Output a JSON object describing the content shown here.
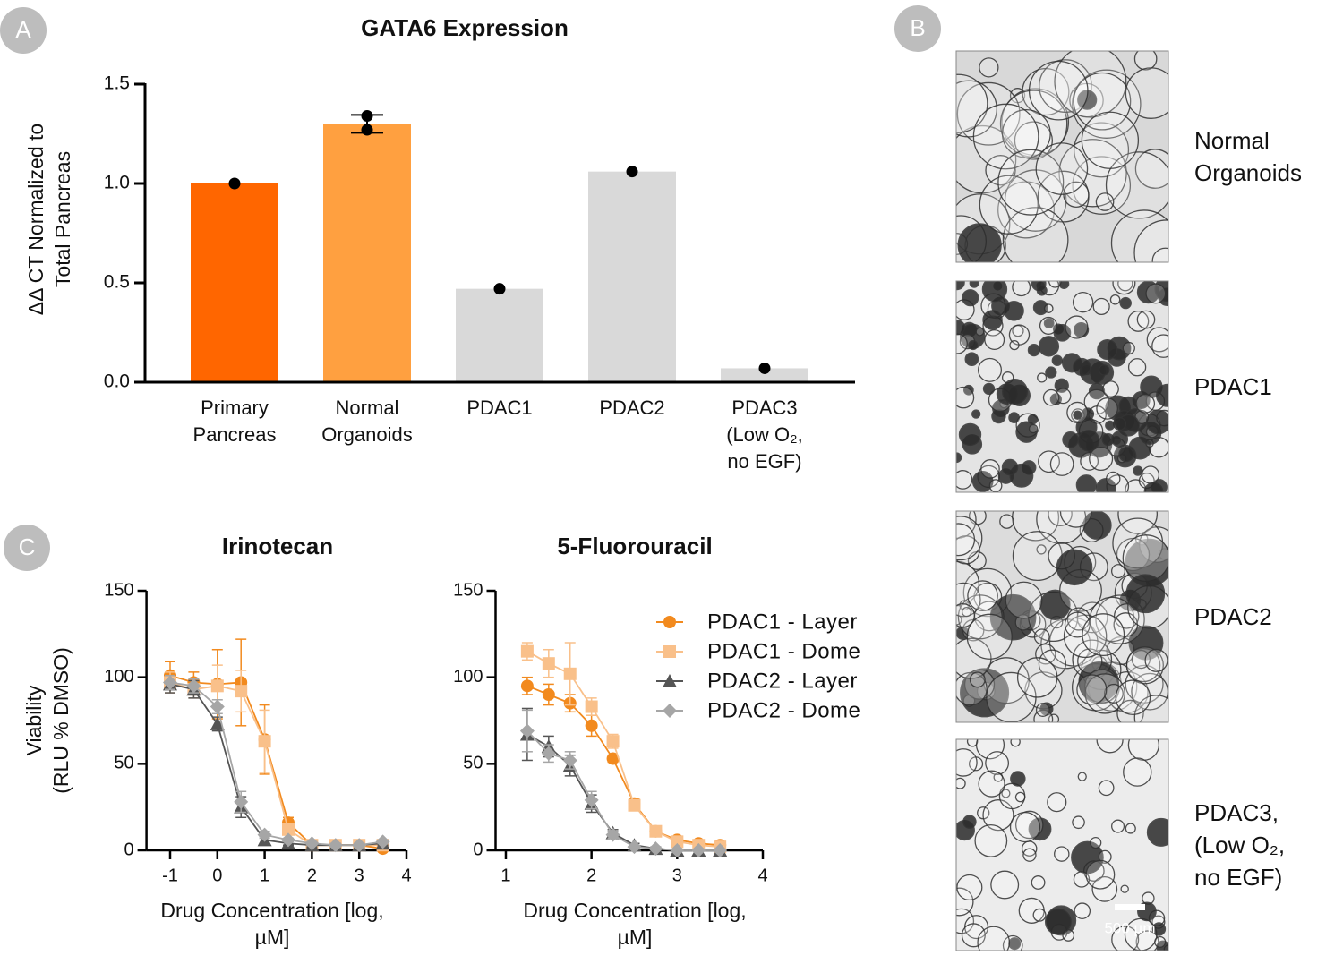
{
  "panel_labels": [
    "A",
    "B",
    "C"
  ],
  "chart_data": [
    {
      "type": "bar",
      "title": "GATA6 Expression",
      "ylabel": [
        "ΔΔ CT Normalized to",
        "Total Pancreas"
      ],
      "categories": [
        "Primary Pancreas",
        "Normal Organoids",
        "PDAC1",
        "PDAC2",
        "PDAC3 (Low O₂, no EGF)"
      ],
      "values": [
        1.0,
        1.3,
        0.47,
        1.06,
        0.07
      ],
      "errors": [
        null,
        0.045,
        null,
        null,
        null
      ],
      "points": [
        [
          1.0
        ],
        [
          1.34,
          1.27
        ],
        [
          0.47
        ],
        [
          1.06
        ],
        [
          0.07
        ]
      ],
      "colors": [
        "#ff6600",
        "#ffa040",
        "#d9d9d9",
        "#d9d9d9",
        "#d9d9d9"
      ],
      "ylim": [
        0,
        1.5
      ],
      "yticks": [
        {
          "value": 0,
          "label": "0.0"
        },
        0.5,
        {
          "value": 1,
          "label": "1.0"
        },
        1.5
      ]
    },
    {
      "type": "line",
      "title": "Irinotecan",
      "ylabel": [
        "Viability",
        "(RLU % DMSO)"
      ],
      "xlabel": "Drug Concentration [log, µM]",
      "x": [
        -1,
        -0.5,
        0,
        0.5,
        1,
        1.5,
        2,
        2.5,
        3,
        3.5
      ],
      "series": [
        {
          "color": "#f28a1e",
          "marker": "circle",
          "values": [
            101,
            97,
            96,
            97,
            64,
            16,
            3,
            3,
            3,
            1
          ],
          "errors": [
            8,
            6,
            20,
            25,
            20,
            3,
            1,
            1,
            1,
            1
          ]
        },
        {
          "color": "#f9c08a",
          "marker": "square",
          "values": [
            97,
            93,
            95,
            92,
            63,
            12,
            3,
            3,
            3,
            3
          ],
          "errors": [
            6,
            5,
            12,
            12,
            18,
            3,
            1,
            1,
            1,
            1
          ]
        },
        {
          "color": "#555555",
          "marker": "triangle",
          "values": [
            96,
            93,
            73,
            25,
            6,
            4,
            3,
            3,
            3,
            4
          ],
          "errors": [
            5,
            5,
            4,
            6,
            2,
            1,
            1,
            1,
            1,
            1
          ]
        },
        {
          "color": "#a6a6a6",
          "marker": "diamond",
          "values": [
            97,
            95,
            83,
            28,
            9,
            6,
            4,
            3,
            3,
            5
          ],
          "errors": [
            4,
            4,
            4,
            6,
            2,
            1,
            1,
            1,
            1,
            1
          ]
        }
      ],
      "xlim": [
        -1.5,
        4
      ],
      "xticks": [
        -1,
        0,
        1,
        2,
        3,
        4
      ],
      "ylim": [
        0,
        150
      ],
      "yticks": [
        0,
        50,
        100,
        150
      ]
    },
    {
      "type": "line",
      "title": "5-Fluorouracil",
      "xlabel": "Drug Concentration [log, µM]",
      "x": [
        1.25,
        1.5,
        1.75,
        2,
        2.25,
        2.5,
        2.75,
        3,
        3.25,
        3.5
      ],
      "series": [
        {
          "name": "PDAC1 - Layer",
          "color": "#f28a1e",
          "marker": "circle",
          "values": [
            95,
            90,
            85,
            72,
            53,
            27,
            11,
            6,
            4,
            3
          ],
          "errors": [
            5,
            6,
            5,
            6,
            2,
            3,
            1,
            1,
            1,
            1
          ]
        },
        {
          "name": "PDAC1 - Dome",
          "color": "#f9c08a",
          "marker": "square",
          "values": [
            115,
            108,
            102,
            83,
            63,
            26,
            11,
            5,
            3,
            2
          ],
          "errors": [
            5,
            8,
            18,
            5,
            4,
            3,
            1,
            1,
            1,
            1
          ]
        },
        {
          "name": "PDAC2 - Layer",
          "color": "#555555",
          "marker": "triangle",
          "values": [
            67,
            60,
            49,
            27,
            10,
            3,
            1,
            0,
            0,
            0
          ],
          "errors": [
            15,
            6,
            6,
            5,
            2,
            1,
            1,
            0,
            0,
            0
          ]
        },
        {
          "name": "PDAC2 - Dome",
          "color": "#a6a6a6",
          "marker": "diamond",
          "values": [
            69,
            56,
            52,
            29,
            9,
            2,
            1,
            0,
            0,
            0
          ],
          "errors": [
            12,
            5,
            5,
            5,
            2,
            1,
            1,
            0,
            0,
            0
          ]
        }
      ],
      "legend": "upper right",
      "xlim": [
        0.88,
        4
      ],
      "xticks": [
        1,
        2,
        3,
        4
      ],
      "ylim": [
        0,
        150
      ],
      "yticks": [
        0,
        50,
        100,
        150
      ]
    }
  ],
  "images": {
    "captions": [
      "Normal Organoids",
      "PDAC1",
      "PDAC2",
      "PDAC3, (Low O₂, no EGF)"
    ],
    "scale_bar": "500 µm"
  }
}
